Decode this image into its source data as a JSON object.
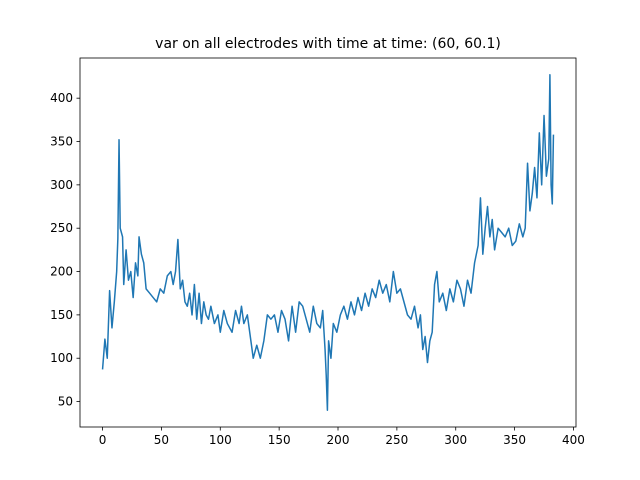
{
  "chart_data": {
    "type": "line",
    "title": "var on all electrodes with time at time: (60, 60.1)",
    "x": [
      0,
      2,
      4,
      6,
      8,
      10,
      12,
      13,
      14,
      15,
      17,
      18,
      20,
      22,
      24,
      26,
      28,
      30,
      31,
      33,
      35,
      37,
      40,
      43,
      46,
      49,
      52,
      55,
      58,
      60,
      62,
      64,
      66,
      68,
      70,
      72,
      74,
      76,
      78,
      80,
      82,
      84,
      86,
      88,
      90,
      92,
      95,
      98,
      100,
      103,
      106,
      110,
      113,
      116,
      118,
      120,
      123,
      126,
      128,
      131,
      134,
      137,
      140,
      143,
      146,
      149,
      152,
      155,
      158,
      161,
      164,
      167,
      170,
      173,
      176,
      179,
      182,
      185,
      187,
      189,
      190,
      191,
      192,
      194,
      196,
      199,
      202,
      205,
      208,
      211,
      214,
      217,
      220,
      223,
      226,
      229,
      232,
      235,
      238,
      241,
      244,
      247,
      250,
      253,
      256,
      259,
      262,
      265,
      268,
      270,
      272,
      274,
      276,
      278,
      280,
      282,
      284,
      286,
      289,
      292,
      295,
      298,
      301,
      304,
      307,
      310,
      313,
      316,
      319,
      321,
      323,
      325,
      327,
      329,
      331,
      333,
      336,
      339,
      342,
      345,
      348,
      351,
      354,
      357,
      359,
      361,
      363,
      365,
      367,
      369,
      371,
      373,
      375,
      377,
      379,
      380,
      381,
      382,
      383
    ],
    "series": [
      {
        "name": "var",
        "color": "#1f77b4",
        "values": [
          87,
          122,
          100,
          178,
          135,
          165,
          200,
          238,
          352,
          250,
          240,
          185,
          225,
          190,
          200,
          170,
          210,
          195,
          240,
          220,
          210,
          180,
          175,
          170,
          165,
          180,
          175,
          195,
          200,
          185,
          200,
          237,
          180,
          190,
          165,
          160,
          175,
          150,
          185,
          145,
          175,
          140,
          165,
          150,
          145,
          160,
          140,
          150,
          130,
          155,
          140,
          130,
          155,
          140,
          160,
          140,
          150,
          120,
          100,
          115,
          100,
          120,
          150,
          145,
          150,
          130,
          155,
          145,
          120,
          160,
          130,
          165,
          160,
          145,
          130,
          160,
          140,
          135,
          155,
          110,
          80,
          40,
          120,
          100,
          140,
          130,
          150,
          160,
          145,
          165,
          150,
          170,
          155,
          175,
          160,
          180,
          170,
          190,
          175,
          185,
          165,
          200,
          175,
          180,
          165,
          150,
          145,
          160,
          135,
          150,
          110,
          125,
          95,
          120,
          130,
          185,
          200,
          165,
          175,
          155,
          180,
          165,
          190,
          180,
          160,
          190,
          175,
          210,
          230,
          285,
          220,
          250,
          275,
          240,
          260,
          225,
          250,
          245,
          240,
          250,
          230,
          235,
          255,
          240,
          250,
          325,
          270,
          290,
          320,
          285,
          360,
          300,
          380,
          310,
          330,
          427,
          300,
          278,
          358
        ]
      }
    ],
    "xlim": [
      -19.15,
      402.15
    ],
    "ylim": [
      20.65,
      446.35
    ],
    "xticks": [
      0,
      50,
      100,
      150,
      200,
      250,
      300,
      350,
      400
    ],
    "yticks": [
      50,
      100,
      150,
      200,
      250,
      300,
      350,
      400
    ]
  }
}
